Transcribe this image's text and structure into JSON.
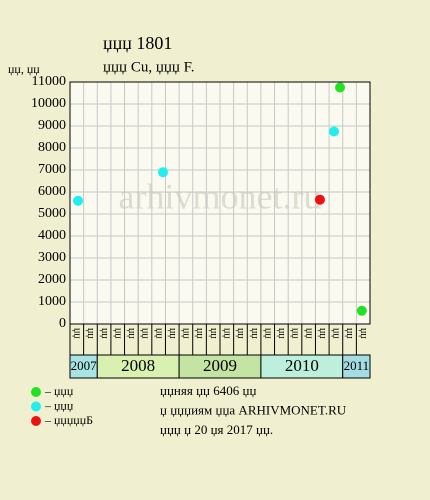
{
  "chart_data": {
    "type": "scatter",
    "title": "џџџ 1801",
    "subtitle": "џџџ Cu, џџџ F.",
    "y_label": "џџ, џџ",
    "watermark": "arhivmonet.ru",
    "ylim": [
      0,
      11000
    ],
    "yticks": [
      0,
      1000,
      2000,
      3000,
      4000,
      5000,
      6000,
      7000,
      8000,
      9000,
      10000,
      11000
    ],
    "xlim": [
      0,
      22
    ],
    "grid": true,
    "categories": [
      "џџ",
      "џџ",
      "џџ",
      "џџ",
      "џџ",
      "џџ",
      "џџ",
      "џџ",
      "џџ",
      "џџ",
      "џџ",
      "џџ",
      "џџ",
      "џџ",
      "џџ",
      "џџ",
      "џџ",
      "џџ",
      "џџ",
      "џџ",
      "џџ",
      "џџ"
    ],
    "years": [
      {
        "label": "2007",
        "span": 2,
        "color": "#a8e4e4"
      },
      {
        "label": "2008",
        "span": 6,
        "color": "#d8f0b0"
      },
      {
        "label": "2009",
        "span": 6,
        "color": "#c4e4a4"
      },
      {
        "label": "2010",
        "span": 6,
        "color": "#bcf0dc"
      },
      {
        "label": "2011",
        "span": 2,
        "color": "#a4dce4"
      }
    ],
    "series": [
      {
        "name": "– џџџ",
        "color": "#22e022",
        "x": [
          19.8,
          21.4
        ],
        "values": [
          10750,
          600
        ]
      },
      {
        "name": "– џџџ",
        "color": "#22eeee",
        "x": [
          0.59,
          6.82,
          19.36
        ],
        "values": [
          5600,
          6900,
          8750
        ]
      },
      {
        "name": "– џџџџџБ",
        "color": "#ee1111",
        "x": [
          18.33
        ],
        "values": [
          5650
        ]
      }
    ],
    "notes": [
      "џџняя џџ 6406 џџ",
      "џ џџџиям џџа ARHIVMONET.RU",
      "џџџ џ 20 џя 2017 џџ."
    ]
  }
}
